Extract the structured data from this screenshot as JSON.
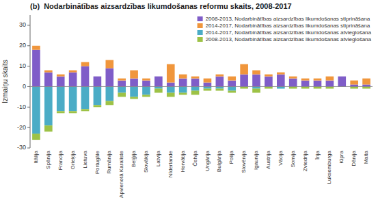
{
  "chart_data": {
    "type": "bar",
    "stacked": true,
    "title": "(b)  Nodarbinātības aizsardzības likumdošanas reformu skaits, 2008-2017",
    "ylabel": "Izmaiņu skaits",
    "categories": [
      "Itālija",
      "Spānija",
      "Francija",
      "Grieķija",
      "Lietuva",
      "Portugāle",
      "Rumānija",
      "Apvienotā Karaliste",
      "Beļģija",
      "Slovākija",
      "Latvija",
      "Nīderlande",
      "Horvātija",
      "Čehija",
      "Ungārija",
      "Bulgārija",
      "Polija",
      "Slovēnija",
      "Igaunija",
      "Austrija",
      "Vācija",
      "Somija",
      "Zviedrija",
      "Īrija",
      "Luksemburga",
      "Kipra",
      "Dānija",
      "Malta"
    ],
    "series": [
      {
        "name": "2008-2013, Nodarbinātības aizsardzības likumdošanas stiprināšana",
        "color": "#7f5dc8",
        "values": [
          18,
          7,
          5,
          7,
          10,
          5,
          9,
          3,
          4,
          3,
          5,
          2,
          4,
          4,
          2,
          5,
          3,
          6,
          6,
          5,
          6,
          4,
          3,
          3,
          3,
          5,
          1,
          1
        ]
      },
      {
        "name": "2014-2017, Nodarbinātības aizsardzības likumdošanas stiprināšana",
        "color": "#f0963c",
        "values": [
          2,
          1,
          1,
          1,
          2,
          0,
          4,
          1,
          4,
          1,
          0,
          9,
          2,
          1,
          2,
          1,
          2,
          5,
          2,
          1,
          1,
          1,
          1,
          1,
          2,
          0,
          2,
          3
        ]
      },
      {
        "name": "2014-2017, Nodarbinātības aizsardzības likumdošanas atvieglošana",
        "color": "#4bacc6",
        "values": [
          -23,
          -19,
          -12,
          -12,
          -11,
          -9,
          -7,
          -3,
          -5,
          -4,
          -1,
          -3,
          -3,
          -2,
          -1,
          -1,
          -2,
          0,
          -1,
          0,
          -1,
          0,
          0,
          0,
          0,
          0,
          0,
          0
        ]
      },
      {
        "name": "2008-2013, Nodarbinātības aizsardzības likumdošanas atvieglošana",
        "color": "#9dc246",
        "values": [
          -3,
          -3,
          -1,
          -1,
          -1,
          -1,
          -2,
          -2,
          -1,
          -1,
          -2,
          -2,
          -1,
          -2,
          -1,
          -1,
          -1,
          -1,
          -2,
          -1,
          0,
          -1,
          -1,
          -1,
          -1,
          0,
          -1,
          -1
        ]
      }
    ],
    "ylim": [
      -30,
      35
    ],
    "yticks": [
      -30,
      -20,
      -10,
      0,
      10,
      20,
      30
    ],
    "grid": false,
    "legend": "upper right"
  }
}
